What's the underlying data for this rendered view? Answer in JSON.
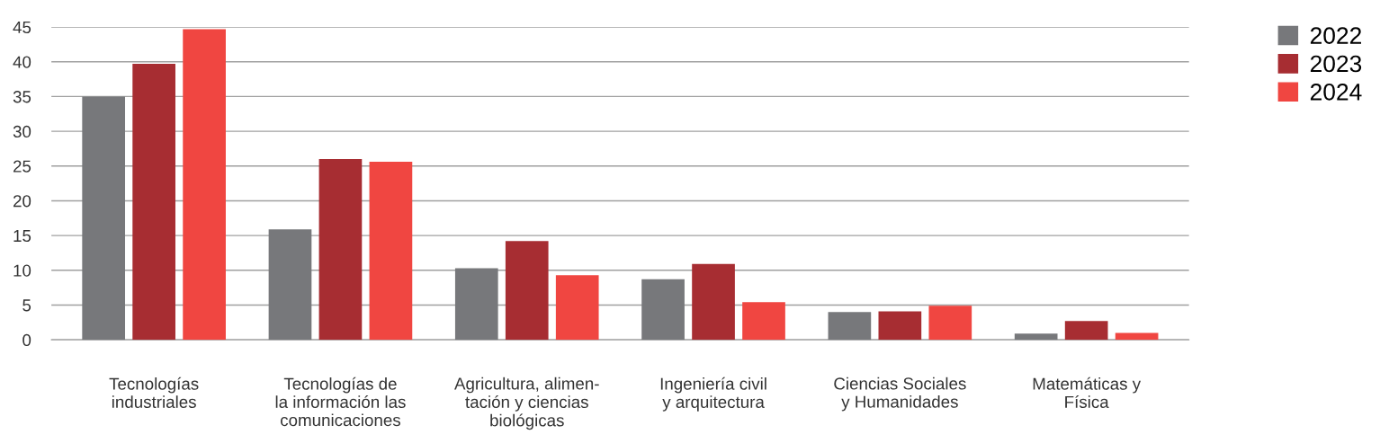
{
  "chart_data": {
    "type": "bar",
    "categories": [
      "Tecnologías\nindustriales",
      "Tecnologías de\nla información las\ncomunicaciones",
      "Agricultura, alimen-\ntación y ciencias\nbiológicas",
      "Ingeniería civil\ny arquitectura",
      "Ciencias Sociales\ny Humanidades",
      "Matemáticas y\nFísica"
    ],
    "series": [
      {
        "name": "2022",
        "color": "#77787b",
        "values": [
          35.0,
          15.9,
          10.3,
          8.7,
          4.0,
          0.9
        ]
      },
      {
        "name": "2023",
        "color": "#a72d32",
        "values": [
          39.7,
          26.0,
          14.2,
          10.9,
          4.1,
          2.7
        ]
      },
      {
        "name": "2024",
        "color": "#f04641",
        "values": [
          44.7,
          25.6,
          9.3,
          5.4,
          4.9,
          1.0
        ]
      }
    ],
    "ylim": [
      0,
      45
    ],
    "yticks": [
      0,
      5,
      10,
      15,
      20,
      25,
      30,
      35,
      40,
      45
    ],
    "grid": "y",
    "legend": "top right"
  }
}
